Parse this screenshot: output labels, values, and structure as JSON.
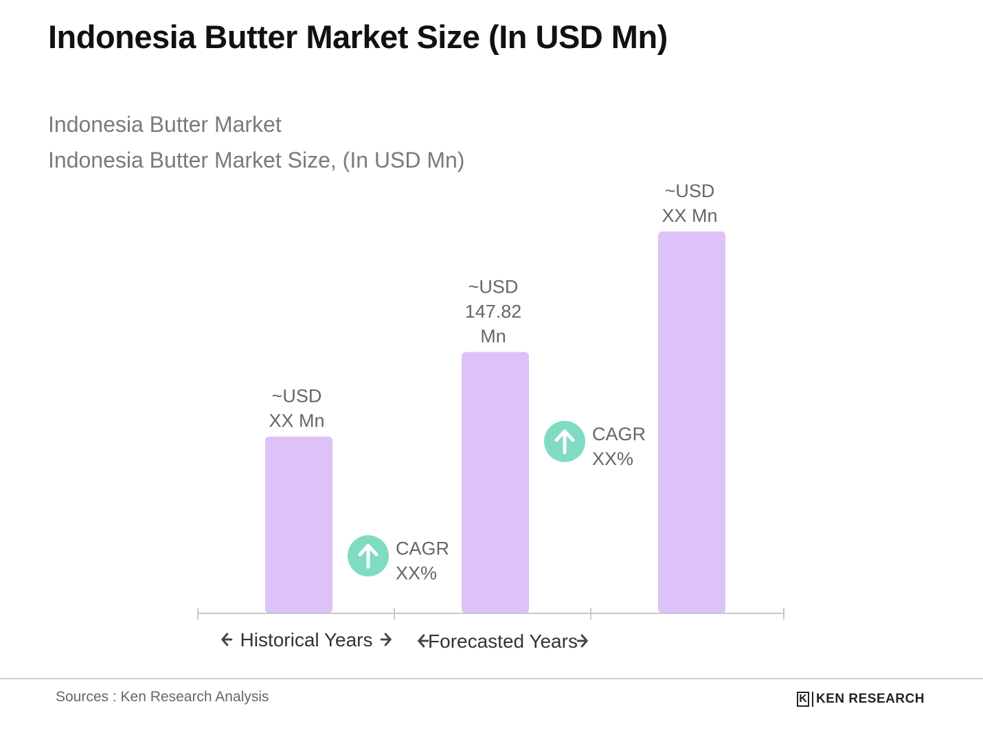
{
  "title": "Indonesia Butter Market Size (In USD Mn)",
  "subtitle_line1": "Indonesia Butter Market",
  "subtitle_line2": "Indonesia Butter Market Size, (In USD Mn)",
  "sources": "Sources : Ken Research Analysis",
  "logo": {
    "mark": "K",
    "text": "KEN RESEARCH"
  },
  "colors": {
    "bar": "#dcc2f6",
    "cagr_circle": "#7fdcc2",
    "axis": "#c8c8c8",
    "label": "#666666"
  },
  "chart_data": {
    "type": "bar",
    "categories": [
      "",
      "",
      ""
    ],
    "values": [
      100,
      147.82,
      216
    ],
    "value_labels": [
      [
        "~USD",
        "XX Mn"
      ],
      [
        "~USD",
        "147.82",
        "Mn"
      ],
      [
        "~USD",
        "XX Mn"
      ]
    ],
    "ylim": [
      0,
      216
    ],
    "grid": false,
    "cagr_annotations": [
      {
        "between": [
          0,
          1
        ],
        "lines": [
          "CAGR",
          "XX%"
        ],
        "icon": "arrow-up-icon"
      },
      {
        "between": [
          1,
          2
        ],
        "lines": [
          "CAGR",
          "XX%"
        ],
        "icon": "arrow-up-icon"
      }
    ],
    "period_labels": [
      {
        "text": "Historical Years",
        "span": [
          0,
          1
        ]
      },
      {
        "text": "Forecasted Years",
        "span": [
          1,
          2
        ]
      }
    ]
  }
}
